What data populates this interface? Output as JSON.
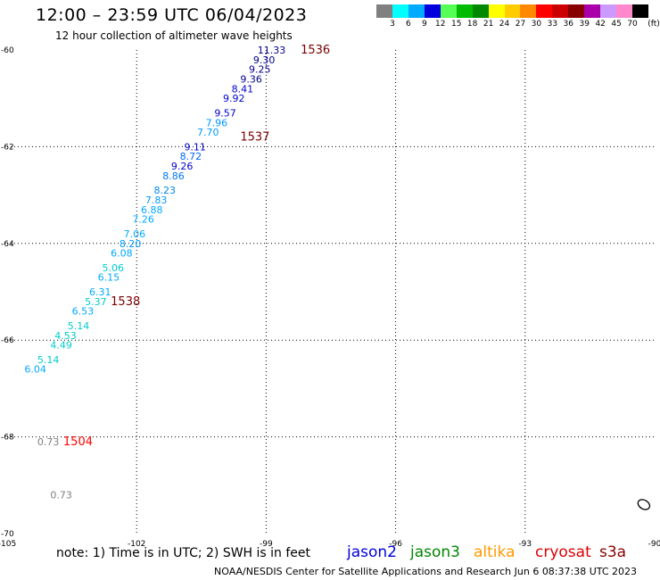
{
  "header": {
    "title": "12:00 – 23:59 UTC 06/04/2023",
    "subtitle": "12 hour collection of altimeter wave heights"
  },
  "colorbar": {
    "colors": [
      "#808080",
      "#00ffff",
      "#00aaff",
      "#0000dd",
      "#55ff55",
      "#00bb00",
      "#008800",
      "#ffff00",
      "#ffcc00",
      "#ff8800",
      "#ff0000",
      "#cc0000",
      "#880000",
      "#aa00aa",
      "#cc99ff",
      "#ff88cc",
      "#000000"
    ],
    "labels": [
      "3",
      "6",
      "9",
      "12",
      "15",
      "18",
      "21",
      "24",
      "27",
      "30",
      "33",
      "36",
      "39",
      "42",
      "45",
      "70",
      "(ft)"
    ]
  },
  "map": {
    "lon_range": [
      -105,
      -90
    ],
    "lat_range": [
      -70,
      -60
    ],
    "x_ticks": [
      "-105",
      "-102",
      "-99",
      "-96",
      "-93",
      "-90"
    ],
    "y_ticks": [
      "-60",
      "-62",
      "-64",
      "-66",
      "-68",
      "-70"
    ],
    "grid_style": "dotted",
    "track_labels": [
      {
        "text": "1536",
        "lon": -98.2,
        "lat": -60.0,
        "color": "#7a0000"
      },
      {
        "text": "1537",
        "lon": -99.6,
        "lat": -61.8,
        "color": "#7a0000"
      },
      {
        "text": "1538",
        "lon": -102.6,
        "lat": -65.2,
        "color": "#7a0000"
      },
      {
        "text": "1504",
        "lon": -103.7,
        "lat": -68.1,
        "color": "#ff0000"
      }
    ],
    "wave_labels": [
      {
        "text": "11.33",
        "lon": -99.2,
        "lat": -60.0,
        "color": "#00008b"
      },
      {
        "text": "9.30",
        "lon": -99.3,
        "lat": -60.2,
        "color": "#00008b"
      },
      {
        "text": "9.25",
        "lon": -99.4,
        "lat": -60.4,
        "color": "#00008b"
      },
      {
        "text": "9.36",
        "lon": -99.6,
        "lat": -60.6,
        "color": "#00008b"
      },
      {
        "text": "8.41",
        "lon": -99.8,
        "lat": -60.8,
        "color": "#0000cd"
      },
      {
        "text": "9.92",
        "lon": -100.0,
        "lat": -61.0,
        "color": "#0000cd"
      },
      {
        "text": "9.57",
        "lon": -100.2,
        "lat": -61.3,
        "color": "#0000cd"
      },
      {
        "text": "7.96",
        "lon": -100.4,
        "lat": -61.5,
        "color": "#0099ff"
      },
      {
        "text": "7.70",
        "lon": -100.6,
        "lat": -61.7,
        "color": "#0099ff"
      },
      {
        "text": "9.11",
        "lon": -100.9,
        "lat": -62.0,
        "color": "#0000cd"
      },
      {
        "text": "8.72",
        "lon": -101.0,
        "lat": -62.2,
        "color": "#0066ff"
      },
      {
        "text": "9.26",
        "lon": -101.2,
        "lat": -62.4,
        "color": "#0000cd"
      },
      {
        "text": "8.86",
        "lon": -101.4,
        "lat": -62.6,
        "color": "#0077ee"
      },
      {
        "text": "8.23",
        "lon": -101.6,
        "lat": -62.9,
        "color": "#0088ee"
      },
      {
        "text": "7.83",
        "lon": -101.8,
        "lat": -63.1,
        "color": "#0099ff"
      },
      {
        "text": "6.88",
        "lon": -101.9,
        "lat": -63.3,
        "color": "#00aaff"
      },
      {
        "text": "7.26",
        "lon": -102.1,
        "lat": -63.5,
        "color": "#00aaff"
      },
      {
        "text": "7.06",
        "lon": -102.3,
        "lat": -63.8,
        "color": "#00aaff"
      },
      {
        "text": "8.20",
        "lon": -102.4,
        "lat": -64.0,
        "color": "#0099ff"
      },
      {
        "text": "6.08",
        "lon": -102.6,
        "lat": -64.2,
        "color": "#00aaff"
      },
      {
        "text": "5.06",
        "lon": -102.8,
        "lat": -64.5,
        "color": "#00cccc"
      },
      {
        "text": "6.15",
        "lon": -102.9,
        "lat": -64.7,
        "color": "#00aaff"
      },
      {
        "text": "6.31",
        "lon": -103.1,
        "lat": -65.0,
        "color": "#00aaff"
      },
      {
        "text": "5.37",
        "lon": -103.2,
        "lat": -65.2,
        "color": "#00cccc"
      },
      {
        "text": "6.53",
        "lon": -103.5,
        "lat": -65.4,
        "color": "#00aaff"
      },
      {
        "text": "5.14",
        "lon": -103.6,
        "lat": -65.7,
        "color": "#00cccc"
      },
      {
        "text": "4.53",
        "lon": -103.9,
        "lat": -65.9,
        "color": "#00cccc"
      },
      {
        "text": "4.49",
        "lon": -104.0,
        "lat": -66.1,
        "color": "#00cccc"
      },
      {
        "text": "5.14",
        "lon": -104.3,
        "lat": -66.4,
        "color": "#00cccc"
      },
      {
        "text": "6.04",
        "lon": -104.6,
        "lat": -66.6,
        "color": "#00aaff"
      },
      {
        "text": "0.73",
        "lon": -104.3,
        "lat": -68.1,
        "color": "#808080"
      },
      {
        "text": "0.73",
        "lon": -104.0,
        "lat": -69.2,
        "color": "#808080"
      }
    ],
    "islands": [
      {
        "lon": -90.25,
        "lat": -69.4
      }
    ]
  },
  "footer": {
    "note": "note: 1) Time is in UTC; 2) SWH is in feet",
    "satellites": [
      {
        "name": "jason2",
        "color": "#0000dd"
      },
      {
        "name": "jason3",
        "color": "#008800"
      },
      {
        "name": "altika",
        "color": "#ff9900"
      },
      {
        "name": "cryosat",
        "color": "#dd0000"
      },
      {
        "name": "s3a",
        "color": "#880000"
      }
    ],
    "credit": "NOAA/NESDIS Center for Satellite Applications and Research    Jun  6 08:37:38 UTC 2023"
  }
}
